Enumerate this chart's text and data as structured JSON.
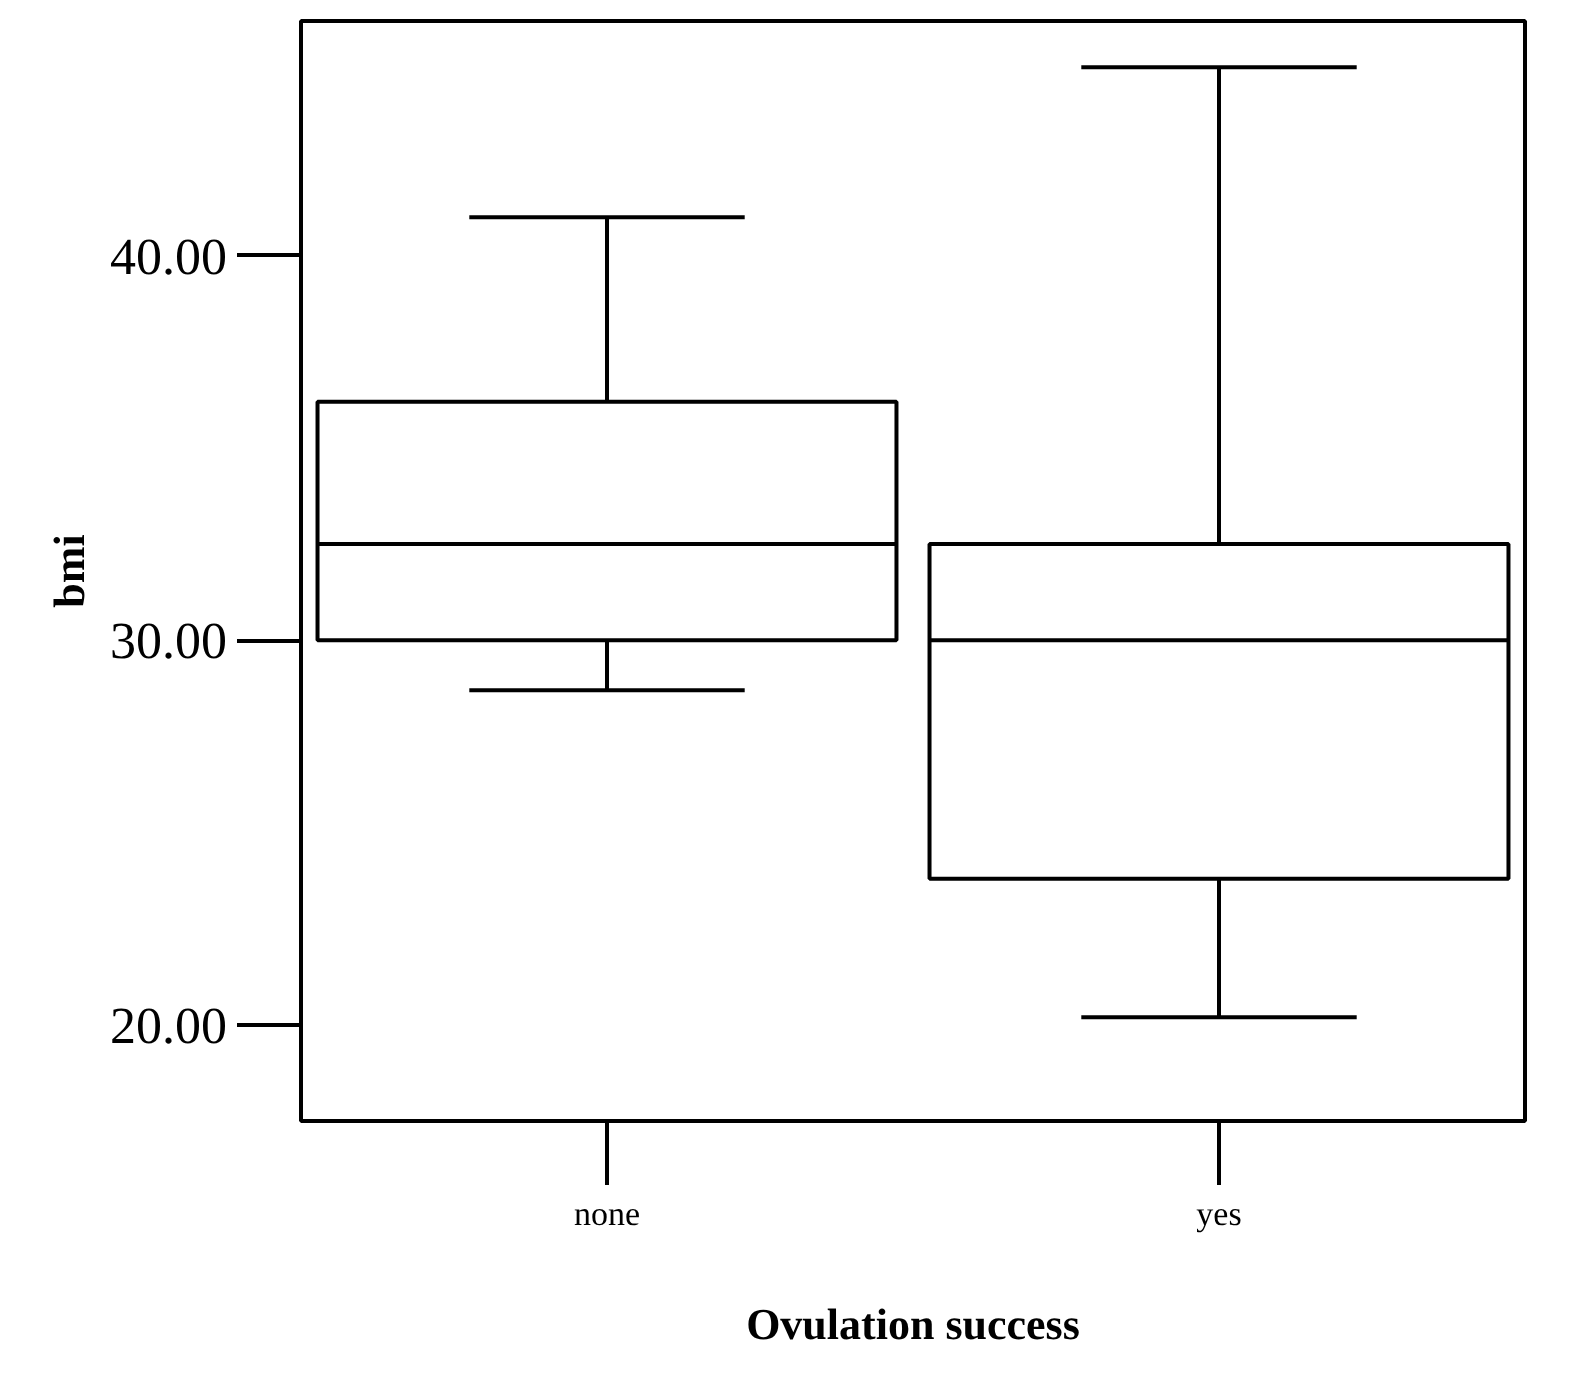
{
  "chart_data": {
    "type": "box",
    "categories": [
      "none",
      "yes"
    ],
    "xlabel": "Ovulation success",
    "ylabel": "bmi",
    "ylim": [
      17.5,
      46.1
    ],
    "yticks": [
      {
        "value": 20,
        "label": "20.00"
      },
      {
        "value": 30,
        "label": "30.00"
      },
      {
        "value": 40,
        "label": "40.00"
      }
    ],
    "grid": false,
    "boxes": [
      {
        "low": 28.7,
        "q1": 30.0,
        "median": 32.5,
        "q3": 36.2,
        "high": 41.0
      },
      {
        "low": 20.2,
        "q1": 23.8,
        "median": 30.0,
        "q3": 32.5,
        "high": 44.9
      }
    ]
  }
}
